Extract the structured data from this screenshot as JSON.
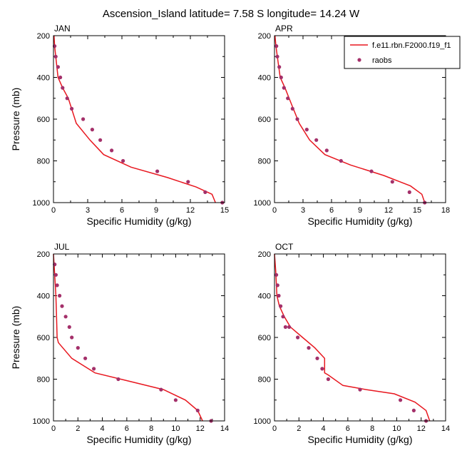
{
  "figure": {
    "title": "Ascension_Island  latitude= 7.58 S longitude= 14.24 W"
  },
  "legend": {
    "position": "top-right of APR panel",
    "entries": [
      {
        "label": "f.e11.rbn.F2000.f19_f1",
        "kind": "line",
        "color": "#e8171f"
      },
      {
        "label": "raobs",
        "kind": "marker",
        "color": "#a4306a"
      }
    ]
  },
  "colors": {
    "model_line": "#e8171f",
    "raobs_marker": "#a4306a",
    "axes": "#000000",
    "background": "#ffffff"
  },
  "chart_data": [
    {
      "type": "line",
      "panel": "JAN",
      "xlabel": "Specific Humidity (g/kg)",
      "ylabel": "Pressure (mb)",
      "xlim": [
        0,
        15
      ],
      "ylim": [
        1000,
        200
      ],
      "y_inverted": true,
      "xticks": [
        0,
        3,
        6,
        9,
        12,
        15
      ],
      "yticks": [
        200,
        400,
        600,
        800,
        1000
      ],
      "series": [
        {
          "name": "f.e11.rbn.F2000.f19_f1",
          "kind": "line",
          "x": [
            0.05,
            0.1,
            0.2,
            0.4,
            0.8,
            1.3,
            2.0,
            3.2,
            4.4,
            6.8,
            10.0,
            12.5,
            13.9,
            14.2
          ],
          "y": [
            200,
            250,
            300,
            400,
            450,
            500,
            620,
            700,
            770,
            830,
            880,
            925,
            960,
            1000
          ]
        },
        {
          "name": "raobs",
          "kind": "scatter",
          "x": [
            0.1,
            0.2,
            0.4,
            0.6,
            0.8,
            1.2,
            1.6,
            2.6,
            3.4,
            4.1,
            5.1,
            6.1,
            9.1,
            11.8,
            13.3,
            14.8
          ],
          "y": [
            250,
            300,
            350,
            400,
            450,
            500,
            550,
            600,
            650,
            700,
            750,
            800,
            850,
            900,
            950,
            1000
          ]
        }
      ]
    },
    {
      "type": "line",
      "panel": "APR",
      "xlabel": "Specific Humidity (g/kg)",
      "ylabel": "",
      "xlim": [
        0,
        18
      ],
      "ylim": [
        1000,
        200
      ],
      "y_inverted": true,
      "xticks": [
        0,
        3,
        6,
        9,
        12,
        15,
        18
      ],
      "yticks": [
        200,
        400,
        600,
        800,
        1000
      ],
      "series": [
        {
          "name": "f.e11.rbn.F2000.f19_f1",
          "kind": "line",
          "x": [
            0.05,
            0.15,
            0.3,
            0.6,
            1.1,
            1.8,
            2.6,
            3.7,
            5.3,
            8.0,
            11.5,
            14.3,
            15.5,
            15.8
          ],
          "y": [
            200,
            250,
            300,
            400,
            450,
            530,
            620,
            700,
            770,
            820,
            870,
            920,
            960,
            1000
          ]
        },
        {
          "name": "raobs",
          "kind": "scatter",
          "x": [
            0.2,
            0.3,
            0.5,
            0.7,
            1.0,
            1.4,
            1.9,
            2.4,
            3.4,
            4.4,
            5.5,
            7.0,
            10.2,
            12.4,
            14.2,
            15.8
          ],
          "y": [
            250,
            300,
            350,
            400,
            450,
            500,
            550,
            600,
            650,
            700,
            750,
            800,
            850,
            900,
            950,
            1000
          ]
        }
      ]
    },
    {
      "type": "line",
      "panel": "JUL",
      "xlabel": "Specific Humidity (g/kg)",
      "ylabel": "Pressure (mb)",
      "xlim": [
        0,
        14
      ],
      "ylim": [
        1000,
        200
      ],
      "y_inverted": true,
      "xticks": [
        0,
        2,
        4,
        6,
        8,
        10,
        12,
        14
      ],
      "yticks": [
        200,
        400,
        600,
        800,
        1000
      ],
      "series": [
        {
          "name": "f.e11.rbn.F2000.f19_f1",
          "kind": "line",
          "x": [
            0.0,
            0.1,
            0.2,
            0.25,
            0.3,
            0.4,
            1.5,
            3.4,
            6.2,
            9.0,
            10.8,
            11.8,
            12.2
          ],
          "y": [
            200,
            300,
            400,
            500,
            600,
            625,
            700,
            770,
            810,
            850,
            900,
            950,
            1000
          ]
        },
        {
          "name": "raobs",
          "kind": "scatter",
          "x": [
            0.1,
            0.2,
            0.3,
            0.5,
            0.7,
            1.0,
            1.3,
            1.5,
            2.0,
            2.6,
            3.3,
            5.3,
            8.8,
            10.0,
            11.8,
            12.9
          ],
          "y": [
            250,
            300,
            350,
            400,
            450,
            500,
            550,
            600,
            650,
            700,
            750,
            800,
            850,
            900,
            950,
            1000
          ]
        }
      ]
    },
    {
      "type": "line",
      "panel": "OCT",
      "xlabel": "Specific Humidity (g/kg)",
      "ylabel": "",
      "xlim": [
        0,
        14
      ],
      "ylim": [
        1000,
        200
      ],
      "y_inverted": true,
      "xticks": [
        0,
        2,
        4,
        6,
        8,
        10,
        12,
        14
      ],
      "yticks": [
        200,
        400,
        600,
        800,
        1000
      ],
      "series": [
        {
          "name": "f.e11.rbn.F2000.f19_f1",
          "kind": "line",
          "x": [
            0.0,
            0.1,
            0.2,
            0.4,
            0.8,
            1.3,
            2.3,
            3.3,
            4.1,
            4.1,
            4.4,
            5.6,
            7.5,
            9.8,
            11.5,
            12.4,
            12.7
          ],
          "y": [
            200,
            280,
            400,
            450,
            500,
            550,
            600,
            650,
            700,
            770,
            780,
            830,
            850,
            870,
            910,
            950,
            1000
          ]
        },
        {
          "name": "raobs",
          "kind": "scatter",
          "x": [
            0.15,
            0.25,
            0.35,
            0.5,
            0.7,
            0.9,
            1.2,
            1.9,
            2.8,
            3.5,
            3.9,
            4.4,
            7.0,
            10.3,
            11.4,
            12.4
          ],
          "y": [
            300,
            350,
            400,
            450,
            500,
            550,
            550,
            600,
            650,
            700,
            750,
            800,
            850,
            900,
            950,
            1000
          ]
        }
      ]
    }
  ]
}
